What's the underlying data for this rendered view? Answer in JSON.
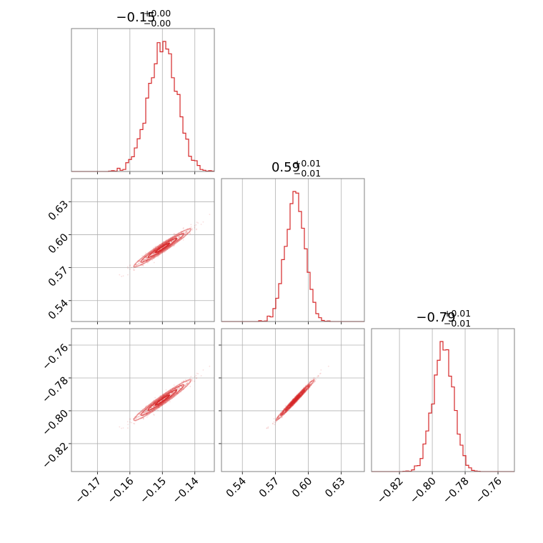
{
  "chart_data": {
    "type": "corner",
    "color": "#d62728",
    "parameters": [
      {
        "median": "−0.15",
        "upper": "+0.00",
        "lower": "−0.00",
        "center": -0.15,
        "sigma": 0.0044,
        "range": [
          -0.178,
          -0.134
        ],
        "ticks": [
          -0.17,
          -0.16,
          -0.15,
          -0.14
        ],
        "tick_labels": [
          "−0.17",
          "−0.16",
          "−0.15",
          "−0.14"
        ]
      },
      {
        "median": "0.59",
        "upper": "+0.01",
        "lower": "−0.01",
        "center": 0.588,
        "sigma": 0.0087,
        "range": [
          0.521,
          0.651
        ],
        "ticks": [
          0.54,
          0.57,
          0.6,
          0.63
        ],
        "tick_labels": [
          "0.54",
          "0.57",
          "0.60",
          "0.63"
        ]
      },
      {
        "median": "−0.79",
        "upper": "+0.01",
        "lower": "−0.01",
        "center": -0.7935,
        "sigma": 0.0062,
        "range": [
          -0.837,
          -0.75
        ],
        "ticks": [
          -0.82,
          -0.8,
          -0.78,
          -0.76
        ],
        "tick_labels": [
          "−0.82",
          "−0.80",
          "−0.78",
          "−0.76"
        ]
      }
    ],
    "hist_bins": 50,
    "pairs": [
      {
        "x": 0,
        "y": 1,
        "correlation": 0.97
      },
      {
        "x": 0,
        "y": 2,
        "correlation": 0.97
      },
      {
        "x": 1,
        "y": 2,
        "correlation": 0.99
      }
    ],
    "contour_levels": [
      0.5,
      1.0,
      1.5,
      2.0
    ],
    "grid": true,
    "legend": "none"
  }
}
